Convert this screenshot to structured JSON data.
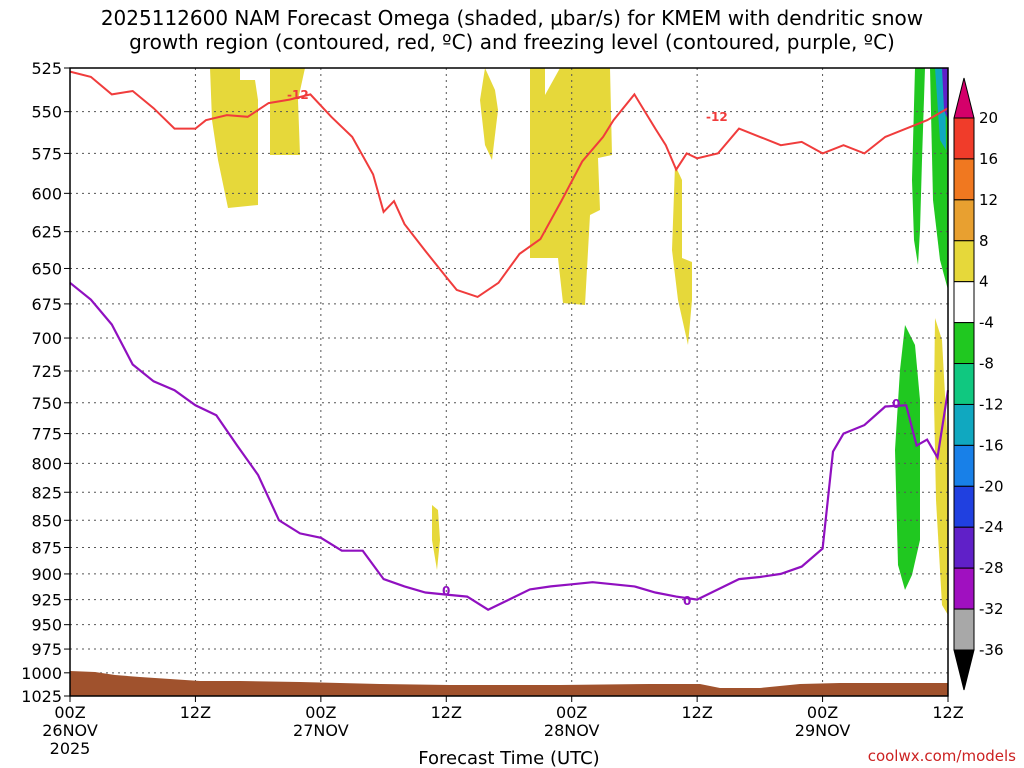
{
  "title": {
    "line1": "2025112600 NAM Forecast Omega (shaded, μbar/s) for KMEM with dendritic snow",
    "line2": "growth region (contoured, red, ºC) and freezing level (contoured, purple, ºC)"
  },
  "chart_data": {
    "type": "time-height",
    "title": "2025112600 NAM Forecast Omega (shaded, μbar/s) for KMEM with dendritic snow growth region (contoured, red, ºC) and freezing level (contoured, purple, ºC)",
    "xlabel": "Forecast Time (UTC)",
    "ylabel": "",
    "xlim_hours": [
      0,
      84
    ],
    "ylim_hpa": [
      525,
      1025
    ],
    "grid": true,
    "x_ticks": [
      {
        "hour": 0,
        "label": "00Z",
        "sub": "26NOV",
        "sub2": "2025"
      },
      {
        "hour": 12,
        "label": "12Z",
        "sub": "",
        "sub2": ""
      },
      {
        "hour": 24,
        "label": "00Z",
        "sub": "27NOV",
        "sub2": ""
      },
      {
        "hour": 36,
        "label": "12Z",
        "sub": "",
        "sub2": ""
      },
      {
        "hour": 48,
        "label": "00Z",
        "sub": "28NOV",
        "sub2": ""
      },
      {
        "hour": 60,
        "label": "12Z",
        "sub": "",
        "sub2": ""
      },
      {
        "hour": 72,
        "label": "00Z",
        "sub": "29NOV",
        "sub2": ""
      },
      {
        "hour": 84,
        "label": "12Z",
        "sub": "",
        "sub2": ""
      }
    ],
    "y_ticks": [
      525,
      550,
      575,
      600,
      625,
      650,
      675,
      700,
      725,
      750,
      775,
      800,
      825,
      850,
      875,
      900,
      925,
      950,
      975,
      1000,
      1025
    ],
    "colorbar": {
      "levels": [
        -36,
        -32,
        -28,
        -24,
        -20,
        -16,
        -12,
        -8,
        -4,
        4,
        8,
        12,
        16,
        20
      ],
      "labels": [
        "20",
        "16",
        "12",
        "8",
        "4",
        "-4",
        "-8",
        "-12",
        "-16",
        "-20",
        "-24",
        "-28",
        "-32",
        "-36"
      ],
      "colors_top_to_bottom": [
        "#d4006a",
        "#f03c2a",
        "#f07820",
        "#e8a030",
        "#e6d83a",
        "#ffffff",
        "#20c820",
        "#10c880",
        "#10a8c0",
        "#1880e8",
        "#2040e0",
        "#6020c8",
        "#a010c0",
        "#a8a8a8",
        "#000000"
      ]
    },
    "dgz_contour_label": "-12",
    "freezing_contour_label": "0",
    "dgz_contour_hpa": [
      {
        "hour": 0,
        "p": 527
      },
      {
        "hour": 2,
        "p": 530
      },
      {
        "hour": 4,
        "p": 540
      },
      {
        "hour": 6,
        "p": 538
      },
      {
        "hour": 8,
        "p": 548
      },
      {
        "hour": 10,
        "p": 560
      },
      {
        "hour": 12,
        "p": 560
      },
      {
        "hour": 13,
        "p": 555
      },
      {
        "hour": 15,
        "p": 552
      },
      {
        "hour": 17,
        "p": 553
      },
      {
        "hour": 19,
        "p": 545
      },
      {
        "hour": 21,
        "p": 543
      },
      {
        "hour": 23,
        "p": 540
      },
      {
        "hour": 25,
        "p": 553
      },
      {
        "hour": 27,
        "p": 565
      },
      {
        "hour": 29,
        "p": 588
      },
      {
        "hour": 30,
        "p": 612
      },
      {
        "hour": 31,
        "p": 605
      },
      {
        "hour": 32,
        "p": 620
      },
      {
        "hour": 34,
        "p": 638
      },
      {
        "hour": 36,
        "p": 656
      },
      {
        "hour": 37,
        "p": 665
      },
      {
        "hour": 39,
        "p": 670
      },
      {
        "hour": 41,
        "p": 660
      },
      {
        "hour": 43,
        "p": 640
      },
      {
        "hour": 45,
        "p": 630
      },
      {
        "hour": 47,
        "p": 605
      },
      {
        "hour": 49,
        "p": 580
      },
      {
        "hour": 51,
        "p": 565
      },
      {
        "hour": 52,
        "p": 555
      },
      {
        "hour": 54,
        "p": 540
      },
      {
        "hour": 56,
        "p": 560
      },
      {
        "hour": 57,
        "p": 570
      },
      {
        "hour": 58,
        "p": 585
      },
      {
        "hour": 59,
        "p": 575
      },
      {
        "hour": 60,
        "p": 578
      },
      {
        "hour": 62,
        "p": 575
      },
      {
        "hour": 64,
        "p": 560
      },
      {
        "hour": 66,
        "p": 565
      },
      {
        "hour": 68,
        "p": 570
      },
      {
        "hour": 70,
        "p": 568
      },
      {
        "hour": 72,
        "p": 575
      },
      {
        "hour": 74,
        "p": 570
      },
      {
        "hour": 76,
        "p": 575
      },
      {
        "hour": 78,
        "p": 565
      },
      {
        "hour": 80,
        "p": 560
      },
      {
        "hour": 82,
        "p": 555
      },
      {
        "hour": 84,
        "p": 548
      }
    ],
    "freezing_level_hpa": [
      {
        "hour": 0,
        "p": 660
      },
      {
        "hour": 2,
        "p": 672
      },
      {
        "hour": 4,
        "p": 690
      },
      {
        "hour": 6,
        "p": 720
      },
      {
        "hour": 8,
        "p": 733
      },
      {
        "hour": 10,
        "p": 740
      },
      {
        "hour": 12,
        "p": 752
      },
      {
        "hour": 14,
        "p": 760
      },
      {
        "hour": 16,
        "p": 785
      },
      {
        "hour": 18,
        "p": 810
      },
      {
        "hour": 20,
        "p": 850
      },
      {
        "hour": 22,
        "p": 862
      },
      {
        "hour": 24,
        "p": 866
      },
      {
        "hour": 26,
        "p": 878
      },
      {
        "hour": 28,
        "p": 878
      },
      {
        "hour": 30,
        "p": 905
      },
      {
        "hour": 32,
        "p": 912
      },
      {
        "hour": 34,
        "p": 918
      },
      {
        "hour": 36,
        "p": 920
      },
      {
        "hour": 38,
        "p": 922
      },
      {
        "hour": 40,
        "p": 935
      },
      {
        "hour": 42,
        "p": 925
      },
      {
        "hour": 44,
        "p": 915
      },
      {
        "hour": 46,
        "p": 912
      },
      {
        "hour": 48,
        "p": 910
      },
      {
        "hour": 50,
        "p": 908
      },
      {
        "hour": 52,
        "p": 910
      },
      {
        "hour": 54,
        "p": 912
      },
      {
        "hour": 56,
        "p": 918
      },
      {
        "hour": 58,
        "p": 922
      },
      {
        "hour": 60,
        "p": 925
      },
      {
        "hour": 62,
        "p": 915
      },
      {
        "hour": 64,
        "p": 905
      },
      {
        "hour": 66,
        "p": 903
      },
      {
        "hour": 68,
        "p": 900
      },
      {
        "hour": 70,
        "p": 893
      },
      {
        "hour": 72,
        "p": 876
      },
      {
        "hour": 73,
        "p": 790
      },
      {
        "hour": 74,
        "p": 775
      },
      {
        "hour": 76,
        "p": 768
      },
      {
        "hour": 78,
        "p": 753
      },
      {
        "hour": 80,
        "p": 752
      },
      {
        "hour": 81,
        "p": 785
      },
      {
        "hour": 82,
        "p": 780
      },
      {
        "hour": 83,
        "p": 795
      },
      {
        "hour": 84,
        "p": 740
      }
    ]
  },
  "credit": "coolwx.com/models"
}
